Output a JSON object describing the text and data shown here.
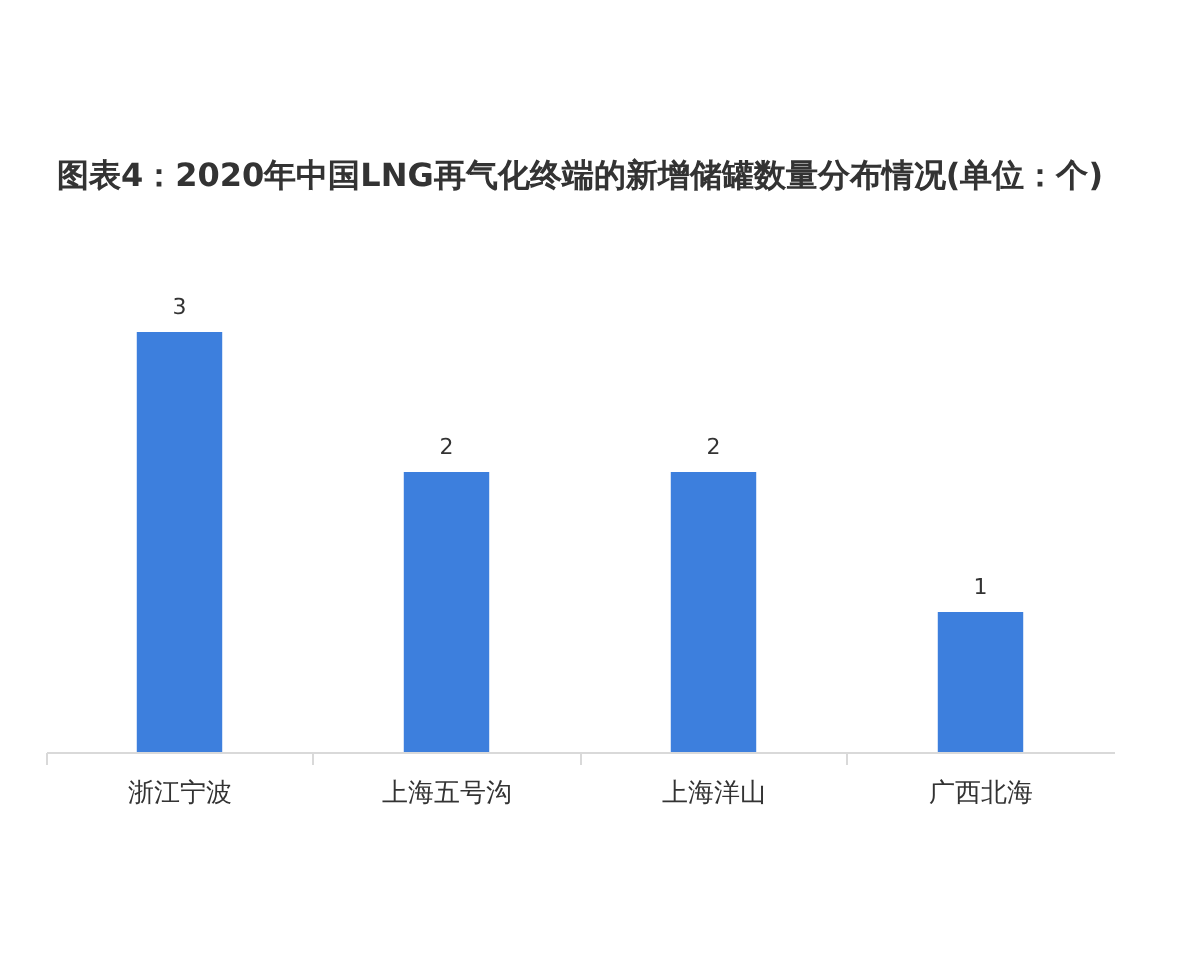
{
  "chart_data": {
    "type": "bar",
    "title": "图表4：2020年中国LNG再气化终端的新增储罐数量分布情况(单位：个)",
    "categories": [
      "浙江宁波",
      "上海五号沟",
      "上海洋山",
      "广西北海"
    ],
    "values": [
      3,
      2,
      2,
      1
    ],
    "color": "#3d7fdd",
    "data_labels": true
  }
}
